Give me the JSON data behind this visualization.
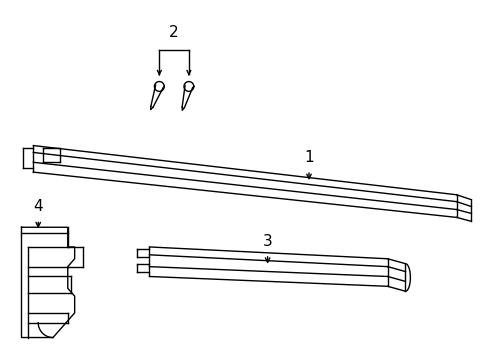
{
  "background_color": "#ffffff",
  "line_color": "#000000",
  "label_fontsize": 10,
  "figsize": [
    4.89,
    3.6
  ],
  "dpi": 100
}
